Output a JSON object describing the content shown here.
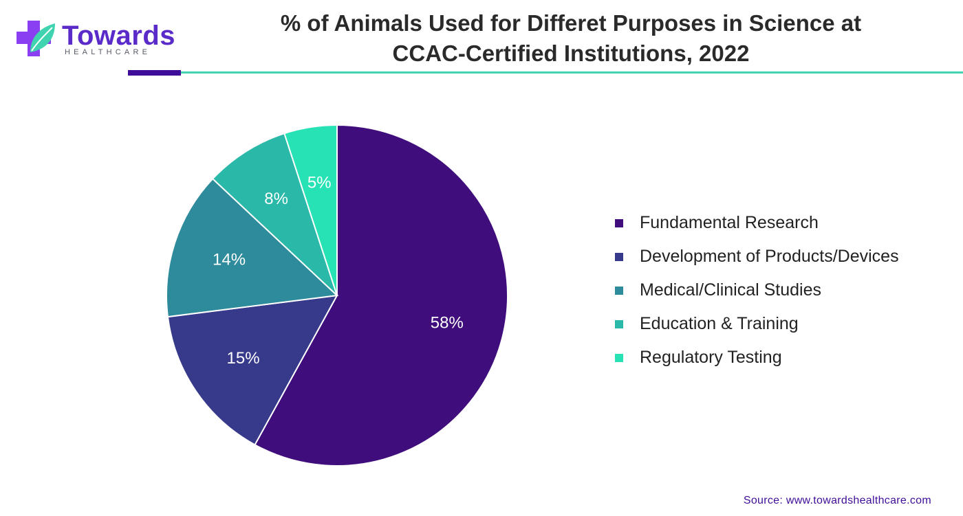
{
  "logo": {
    "name": "Towards",
    "sub": "HEALTHCARE",
    "icon": "medical-cross-leaf-icon",
    "colors": {
      "cross": "#8a3ff0",
      "leaf": "#3fd3b0"
    }
  },
  "header": {
    "title_line1": "% of Animals Used for Differet Purposes in Science at",
    "title_line2": "CCAC-Certified Institutions, 2022"
  },
  "chart_data": {
    "type": "pie",
    "title": "% of Animals Used for Differet Purposes in Science at CCAC-Certified Institutions, 2022",
    "categories": [
      "Fundamental Research",
      "Development of Products/Devices",
      "Medical/Clinical Studies",
      "Education & Training",
      "Regulatory Testing"
    ],
    "values": [
      58,
      15,
      14,
      8,
      5
    ],
    "labels": [
      "58%",
      "15%",
      "14%",
      "8%",
      "5%"
    ],
    "colors": [
      "#3f0d7c",
      "#373a8a",
      "#2e8b9b",
      "#2ab8a8",
      "#26e2b4"
    ],
    "legend_position": "right"
  },
  "footer": {
    "source": "Source: www.towardshealthcare.com"
  }
}
